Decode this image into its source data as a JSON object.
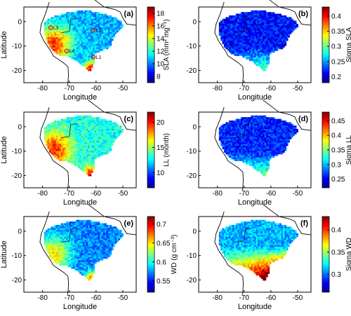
{
  "figure": {
    "panels": [
      {
        "id": "a",
        "label": "(a)",
        "x_label": "Longitude",
        "y_label": "Latitude",
        "colorbar_label": "SLA (mm² mg⁻¹)",
        "colorbar_range": [
          7,
          19
        ],
        "colorbar_ticks": [
          "8",
          "10",
          "12",
          "14",
          "16",
          "18"
        ],
        "x_ticks": [
          "-80",
          "-70",
          "-60",
          "-50"
        ],
        "y_ticks": [
          "0",
          "-10",
          "-20"
        ],
        "field_mean": 0.3,
        "hotspot": "southwest",
        "hotspot_strength": 0.55,
        "sites": [
          {
            "name": "L3",
            "lon": -77,
            "lat": -2.5
          },
          {
            "name": "L2",
            "lon": -61,
            "lat": -3.5
          },
          {
            "name": "L4",
            "lon": -71,
            "lat": -12
          },
          {
            "name": "L1",
            "lon": -61,
            "lat": -14.5
          }
        ]
      },
      {
        "id": "b",
        "label": "(b)",
        "x_label": "Longitude",
        "y_label": "",
        "colorbar_label": "Sigma SLA",
        "colorbar_range": [
          0.18,
          0.43
        ],
        "colorbar_ticks": [
          "0.2",
          "0.25",
          "0.3",
          "0.35",
          "0.4"
        ],
        "x_ticks": [
          "-80",
          "-70",
          "-60",
          "-50"
        ],
        "y_ticks": [
          "0",
          "-10",
          "-20"
        ],
        "field_mean": 0.14,
        "hotspot": "south",
        "hotspot_strength": 0.35,
        "sites": []
      },
      {
        "id": "c",
        "label": "(c)",
        "x_label": "Longitude",
        "y_label": "Latitude",
        "colorbar_label": "LL (month)",
        "colorbar_range": [
          7,
          22
        ],
        "colorbar_ticks": [
          "10",
          "15",
          "20"
        ],
        "x_ticks": [
          "-80",
          "-70",
          "-60",
          "-50"
        ],
        "y_ticks": [
          "0",
          "-10",
          "-20"
        ],
        "field_mean": 0.4,
        "hotspot": "southwest",
        "hotspot_strength": 0.45,
        "sites": []
      },
      {
        "id": "d",
        "label": "(d)",
        "x_label": "Longitude",
        "y_label": "",
        "colorbar_label": "Sigma LL",
        "colorbar_range": [
          0.22,
          0.48
        ],
        "colorbar_ticks": [
          "0.25",
          "0.3",
          "0.35",
          "0.4",
          "0.45"
        ],
        "x_ticks": [
          "-80",
          "-70",
          "-60",
          "-50"
        ],
        "y_ticks": [
          "0",
          "-10",
          "-20"
        ],
        "field_mean": 0.16,
        "hotspot": "south",
        "hotspot_strength": 0.35,
        "sites": []
      },
      {
        "id": "e",
        "label": "(e)",
        "x_label": "Longitude",
        "y_label": "Latitude",
        "colorbar_label": "WD (g cm⁻³)",
        "colorbar_range": [
          0.52,
          0.72
        ],
        "colorbar_ticks": [
          "0.55",
          "0.6",
          "0.65",
          "0.7"
        ],
        "x_ticks": [
          "-80",
          "-70",
          "-60",
          "-50"
        ],
        "y_ticks": [
          "0",
          "-10",
          "-20"
        ],
        "field_mean": 0.25,
        "hotspot": "southwest",
        "hotspot_strength": 0.4,
        "sites": []
      },
      {
        "id": "f",
        "label": "(f)",
        "x_label": "Longitude",
        "y_label": "",
        "colorbar_label": "Sigma WD",
        "colorbar_range": [
          0.26,
          0.43
        ],
        "colorbar_ticks": [
          "0.3",
          "0.35",
          "0.4"
        ],
        "x_ticks": [
          "-80",
          "-70",
          "-60",
          "-50"
        ],
        "y_ticks": [
          "0",
          "-10",
          "-20"
        ],
        "field_mean": 0.3,
        "hotspot": "southeast",
        "hotspot_strength": 0.55,
        "sites": []
      }
    ]
  }
}
